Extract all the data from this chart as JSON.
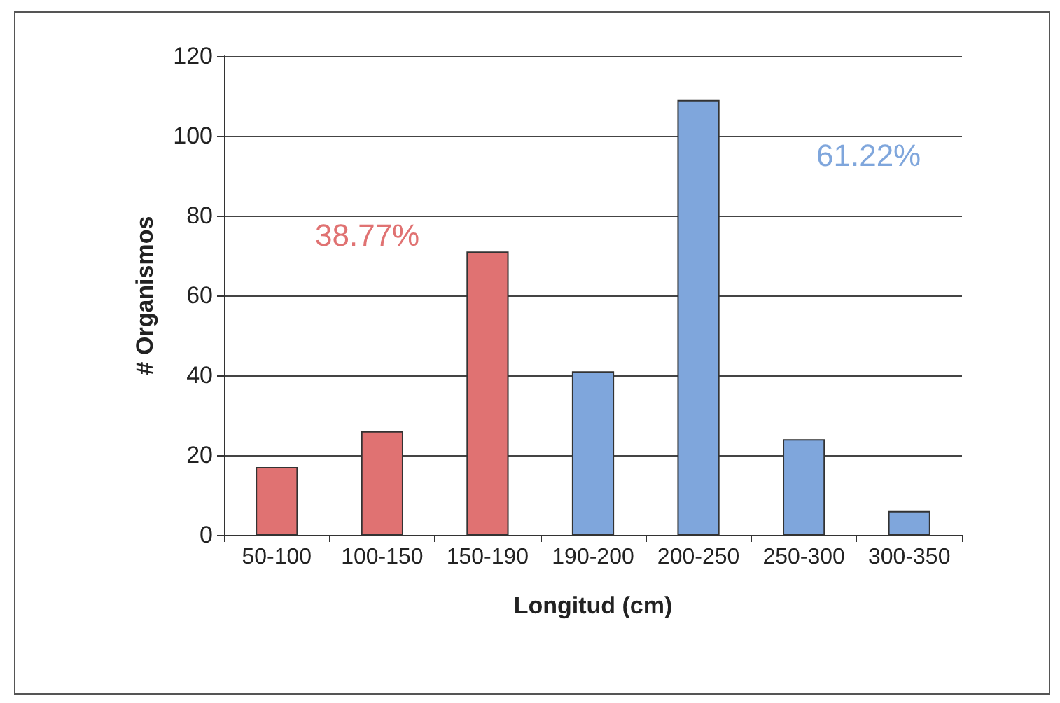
{
  "chart_data": {
    "type": "bar",
    "xlabel": "Longitud (cm)",
    "ylabel": "# Organismos",
    "categories": [
      "50-100",
      "100-150",
      "150-190",
      "190-200",
      "200-250",
      "250-300",
      "300-350"
    ],
    "values": [
      17,
      26,
      71,
      41,
      109,
      24,
      6
    ],
    "colors": [
      "#e07272",
      "#e07272",
      "#e07272",
      "#7fa6dc",
      "#7fa6dc",
      "#7fa6dc",
      "#7fa6dc"
    ],
    "ylim": [
      0,
      120
    ],
    "yticks": [
      0,
      20,
      40,
      60,
      80,
      100,
      120
    ],
    "grid": "y",
    "annotations": [
      "38.77%",
      "61.22%"
    ]
  }
}
